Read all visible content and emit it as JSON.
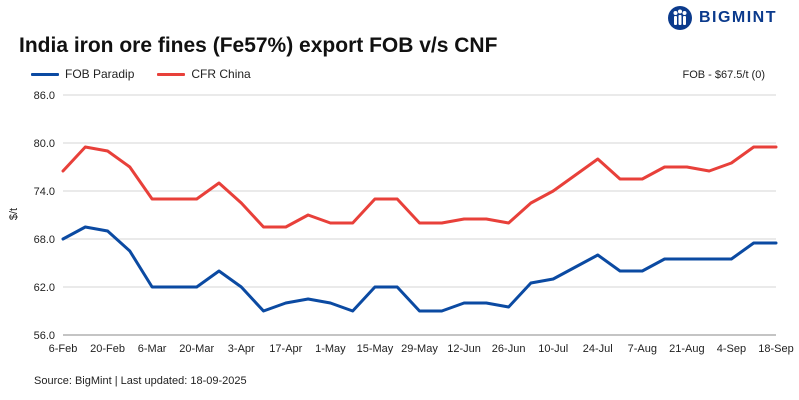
{
  "brand": {
    "name": "BIGMINT",
    "logo_icon": "bigmint-logo-icon",
    "color": "#0b3a8c"
  },
  "chart_data": {
    "type": "line",
    "title": "India iron ore fines (Fe57%) export FOB v/s CNF",
    "ylabel": "$/t",
    "xlabel": "",
    "ylim": [
      56.0,
      86.0
    ],
    "yticks": [
      "56.0",
      "62.0",
      "68.0",
      "74.0",
      "80.0",
      "86.0"
    ],
    "grid": "horizontal",
    "legend_position": "top-left",
    "note": "FOB - $67.5/t (0)",
    "source": "Source: BigMint | Last updated: 18-09-2025",
    "x": [
      "6-Feb",
      "13-Feb",
      "20-Feb",
      "27-Feb",
      "6-Mar",
      "13-Mar",
      "20-Mar",
      "27-Mar",
      "3-Apr",
      "10-Apr",
      "17-Apr",
      "24-Apr",
      "1-May",
      "8-May",
      "15-May",
      "22-May",
      "29-May",
      "5-Jun",
      "12-Jun",
      "19-Jun",
      "26-Jun",
      "3-Jul",
      "10-Jul",
      "17-Jul",
      "24-Jul",
      "31-Jul",
      "7-Aug",
      "14-Aug",
      "21-Aug",
      "28-Aug",
      "4-Sep",
      "11-Sep",
      "18-Sep"
    ],
    "tick_labels": [
      "6-Feb",
      "20-Feb",
      "6-Mar",
      "20-Mar",
      "3-Apr",
      "17-Apr",
      "1-May",
      "15-May",
      "29-May",
      "12-Jun",
      "26-Jun",
      "10-Jul",
      "24-Jul",
      "7-Aug",
      "21-Aug",
      "4-Sep",
      "18-Sep"
    ],
    "series": [
      {
        "name": "FOB Paradip",
        "color": "#0b4aa2",
        "values": [
          68.0,
          69.5,
          69.0,
          66.5,
          62.0,
          62.0,
          62.0,
          64.0,
          62.0,
          59.0,
          60.0,
          60.5,
          60.0,
          59.0,
          62.0,
          62.0,
          59.0,
          59.0,
          60.0,
          60.0,
          59.5,
          62.5,
          63.0,
          64.5,
          66.0,
          64.0,
          64.0,
          65.5,
          65.5,
          65.5,
          65.5,
          67.5,
          67.5
        ]
      },
      {
        "name": "CFR China",
        "color": "#e8403a",
        "values": [
          76.5,
          79.5,
          79.0,
          77.0,
          73.0,
          73.0,
          73.0,
          75.0,
          72.5,
          69.5,
          69.5,
          71.0,
          70.0,
          70.0,
          73.0,
          73.0,
          70.0,
          70.0,
          70.5,
          70.5,
          70.0,
          72.5,
          74.0,
          76.0,
          78.0,
          75.5,
          75.5,
          77.0,
          77.0,
          76.5,
          77.5,
          79.5,
          79.5
        ]
      }
    ]
  }
}
